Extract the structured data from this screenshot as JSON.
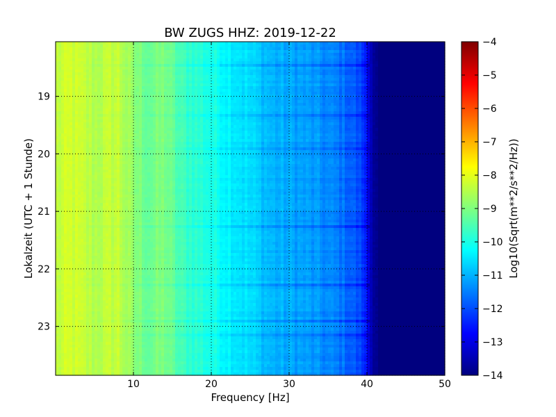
{
  "chart_data": {
    "type": "heatmap",
    "title": "BW ZUGS HHZ: 2019-12-22",
    "xlabel": "Frequency [Hz]",
    "ylabel": "Lokalzeit (UTC + 1 Stunde)",
    "colorbar_label": "Log10(Sqrt(m**2/s**2/Hz))",
    "colormap": "jet",
    "xlim": [
      0,
      50
    ],
    "ylim": [
      23.85,
      18.05
    ],
    "y_inverted": true,
    "clim": [
      -14,
      -4
    ],
    "grid": true,
    "grid_style": "dotted",
    "x_ticks": [
      10,
      20,
      30,
      40,
      50
    ],
    "x_tick_labels": [
      "10",
      "20",
      "30",
      "40",
      "50"
    ],
    "y_ticks": [
      19,
      20,
      21,
      22,
      23
    ],
    "y_tick_labels": [
      "19",
      "20",
      "21",
      "22",
      "23"
    ],
    "colorbar_ticks": [
      -4,
      -5,
      -6,
      -7,
      -8,
      -9,
      -10,
      -11,
      -12,
      -13,
      -14
    ],
    "colorbar_tick_labels": [
      "−4",
      "−5",
      "−6",
      "−7",
      "−8",
      "−9",
      "−10",
      "−11",
      "−12",
      "−13",
      "−14"
    ],
    "spectrum_profile": {
      "frequency_hz": [
        0,
        2,
        5,
        8,
        10,
        12,
        14,
        16,
        20,
        24,
        28,
        32,
        36,
        38,
        39.5,
        40.5,
        41.5,
        43,
        50
      ],
      "log10_amplitude": [
        -8.4,
        -8.2,
        -8.5,
        -8.3,
        -8.9,
        -9.2,
        -9.0,
        -9.6,
        -10.0,
        -10.5,
        -11.0,
        -11.2,
        -11.5,
        -11.8,
        -12.2,
        -13.4,
        -13.9,
        -14.0,
        -14.0
      ]
    }
  },
  "colors": {
    "jet_stops": [
      "#00007f",
      "#0000ff",
      "#007fff",
      "#00ffff",
      "#7fff7f",
      "#ffff00",
      "#ff7f00",
      "#ff0000",
      "#7f0000"
    ]
  }
}
